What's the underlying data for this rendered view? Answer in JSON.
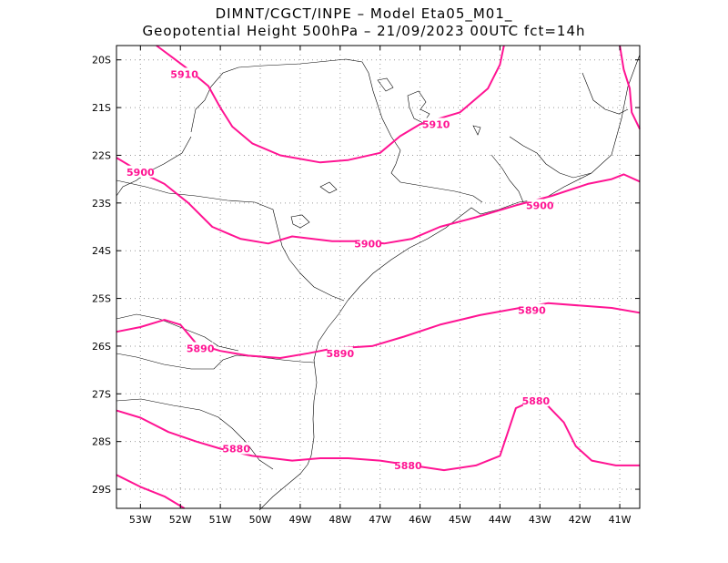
{
  "title": {
    "line1": "DIMNT/CGCT/INPE –  Model Eta05_M01_",
    "line2": "Geopotential Height 500hPa –  21/09/2023 00UTC fct=14h"
  },
  "map": {
    "lon_range": [
      -53.6,
      -40.5
    ],
    "lat_range": [
      -29.4,
      -19.7
    ],
    "grid": "dotted",
    "x_ticks": [
      {
        "value": -53,
        "label": "53W"
      },
      {
        "value": -52,
        "label": "52W"
      },
      {
        "value": -51,
        "label": "51W"
      },
      {
        "value": -50,
        "label": "50W"
      },
      {
        "value": -49,
        "label": "49W"
      },
      {
        "value": -48,
        "label": "48W"
      },
      {
        "value": -47,
        "label": "47W"
      },
      {
        "value": -46,
        "label": "46W"
      },
      {
        "value": -45,
        "label": "45W"
      },
      {
        "value": -44,
        "label": "44W"
      },
      {
        "value": -43,
        "label": "43W"
      },
      {
        "value": -42,
        "label": "42W"
      },
      {
        "value": -41,
        "label": "41W"
      }
    ],
    "y_ticks": [
      {
        "value": -20,
        "label": "20S"
      },
      {
        "value": -21,
        "label": "21S"
      },
      {
        "value": -22,
        "label": "22S"
      },
      {
        "value": -23,
        "label": "23S"
      },
      {
        "value": -24,
        "label": "24S"
      },
      {
        "value": -25,
        "label": "25S"
      },
      {
        "value": -26,
        "label": "26S"
      },
      {
        "value": -27,
        "label": "27S"
      },
      {
        "value": -28,
        "label": "28S"
      },
      {
        "value": -29,
        "label": "29S"
      }
    ],
    "contour_color": "#ff1493",
    "contours": [
      {
        "label": "5910",
        "label_at": [
          -51.9,
          -20.3
        ],
        "points": [
          [
            -52.6,
            -19.7
          ],
          [
            -52.2,
            -19.95
          ],
          [
            -51.8,
            -20.2
          ],
          [
            -51.3,
            -20.55
          ],
          [
            -51.0,
            -21.0
          ],
          [
            -50.7,
            -21.4
          ],
          [
            -50.2,
            -21.75
          ],
          [
            -49.5,
            -22.0
          ],
          [
            -48.5,
            -22.15
          ],
          [
            -47.8,
            -22.1
          ],
          [
            -47.0,
            -21.95
          ],
          [
            -46.5,
            -21.6
          ],
          [
            -46.0,
            -21.35
          ],
          [
            -45.0,
            -21.1
          ],
          [
            -44.3,
            -20.6
          ],
          [
            -44.0,
            -20.1
          ],
          [
            -43.9,
            -19.7
          ]
        ]
      },
      {
        "label": "5910",
        "label_at": [
          -45.6,
          -21.35
        ],
        "points": []
      },
      {
        "label": "5900",
        "label_at": [
          -53.0,
          -22.35
        ],
        "points": [
          [
            -53.6,
            -22.05
          ],
          [
            -53.0,
            -22.35
          ],
          [
            -52.4,
            -22.6
          ],
          [
            -51.8,
            -23.0
          ],
          [
            -51.2,
            -23.5
          ],
          [
            -50.5,
            -23.75
          ],
          [
            -49.8,
            -23.85
          ],
          [
            -49.2,
            -23.7
          ],
          [
            -48.2,
            -23.8
          ],
          [
            -47.4,
            -23.8
          ],
          [
            -46.9,
            -23.85
          ],
          [
            -46.2,
            -23.75
          ],
          [
            -45.5,
            -23.5
          ],
          [
            -44.6,
            -23.3
          ],
          [
            -43.6,
            -23.05
          ],
          [
            -42.7,
            -22.85
          ],
          [
            -41.8,
            -22.6
          ],
          [
            -41.2,
            -22.5
          ],
          [
            -40.9,
            -22.4
          ],
          [
            -40.5,
            -22.55
          ]
        ]
      },
      {
        "label": "5900",
        "label_at": [
          -47.3,
          -23.85
        ],
        "points": []
      },
      {
        "label": "5900",
        "label_at": [
          -43.0,
          -23.05
        ],
        "points": []
      },
      {
        "label": "5890",
        "label_at": [
          -51.5,
          -26.05
        ],
        "points": [
          [
            -53.6,
            -25.7
          ],
          [
            -53.0,
            -25.6
          ],
          [
            -52.4,
            -25.45
          ],
          [
            -52.0,
            -25.55
          ],
          [
            -51.6,
            -25.95
          ],
          [
            -51.0,
            -26.1
          ],
          [
            -50.3,
            -26.2
          ],
          [
            -49.5,
            -26.25
          ],
          [
            -48.8,
            -26.15
          ],
          [
            -48.2,
            -26.05
          ],
          [
            -47.2,
            -26.0
          ],
          [
            -46.4,
            -25.8
          ],
          [
            -45.5,
            -25.55
          ],
          [
            -44.5,
            -25.35
          ],
          [
            -43.5,
            -25.2
          ],
          [
            -42.8,
            -25.1
          ],
          [
            -42.0,
            -25.15
          ],
          [
            -41.2,
            -25.2
          ],
          [
            -40.5,
            -25.3
          ]
        ]
      },
      {
        "label": "5890",
        "label_at": [
          -48.0,
          -26.15
        ],
        "points": []
      },
      {
        "label": "5890",
        "label_at": [
          -43.2,
          -25.25
        ],
        "points": []
      },
      {
        "label": "5880",
        "label_at": [
          -50.6,
          -28.15
        ],
        "points": [
          [
            -53.6,
            -27.35
          ],
          [
            -53.0,
            -27.5
          ],
          [
            -52.3,
            -27.8
          ],
          [
            -51.6,
            -28.0
          ],
          [
            -51.0,
            -28.15
          ],
          [
            -50.2,
            -28.3
          ],
          [
            -49.2,
            -28.4
          ],
          [
            -48.5,
            -28.35
          ],
          [
            -47.8,
            -28.35
          ],
          [
            -47.0,
            -28.4
          ],
          [
            -46.2,
            -28.5
          ],
          [
            -45.4,
            -28.6
          ],
          [
            -44.6,
            -28.5
          ],
          [
            -44.0,
            -28.3
          ],
          [
            -43.8,
            -27.8
          ],
          [
            -43.6,
            -27.3
          ],
          [
            -43.2,
            -27.15
          ],
          [
            -42.8,
            -27.25
          ],
          [
            -42.4,
            -27.6
          ],
          [
            -42.1,
            -28.1
          ],
          [
            -41.7,
            -28.4
          ],
          [
            -41.1,
            -28.5
          ],
          [
            -40.5,
            -28.5
          ]
        ]
      },
      {
        "label": "5880",
        "label_at": [
          -46.3,
          -28.5
        ],
        "points": []
      },
      {
        "label": "5880",
        "label_at": [
          -43.1,
          -27.15
        ],
        "points": []
      },
      {
        "label": "",
        "label_at": null,
        "points": [
          [
            -53.6,
            -28.7
          ],
          [
            -53.0,
            -28.95
          ],
          [
            -52.4,
            -29.15
          ],
          [
            -51.9,
            -29.4
          ]
        ]
      },
      {
        "label": "",
        "label_at": null,
        "points": [
          [
            -41.0,
            -19.7
          ],
          [
            -40.9,
            -20.2
          ],
          [
            -40.75,
            -20.6
          ],
          [
            -40.7,
            -21.1
          ],
          [
            -40.5,
            -21.45
          ]
        ]
      }
    ]
  }
}
